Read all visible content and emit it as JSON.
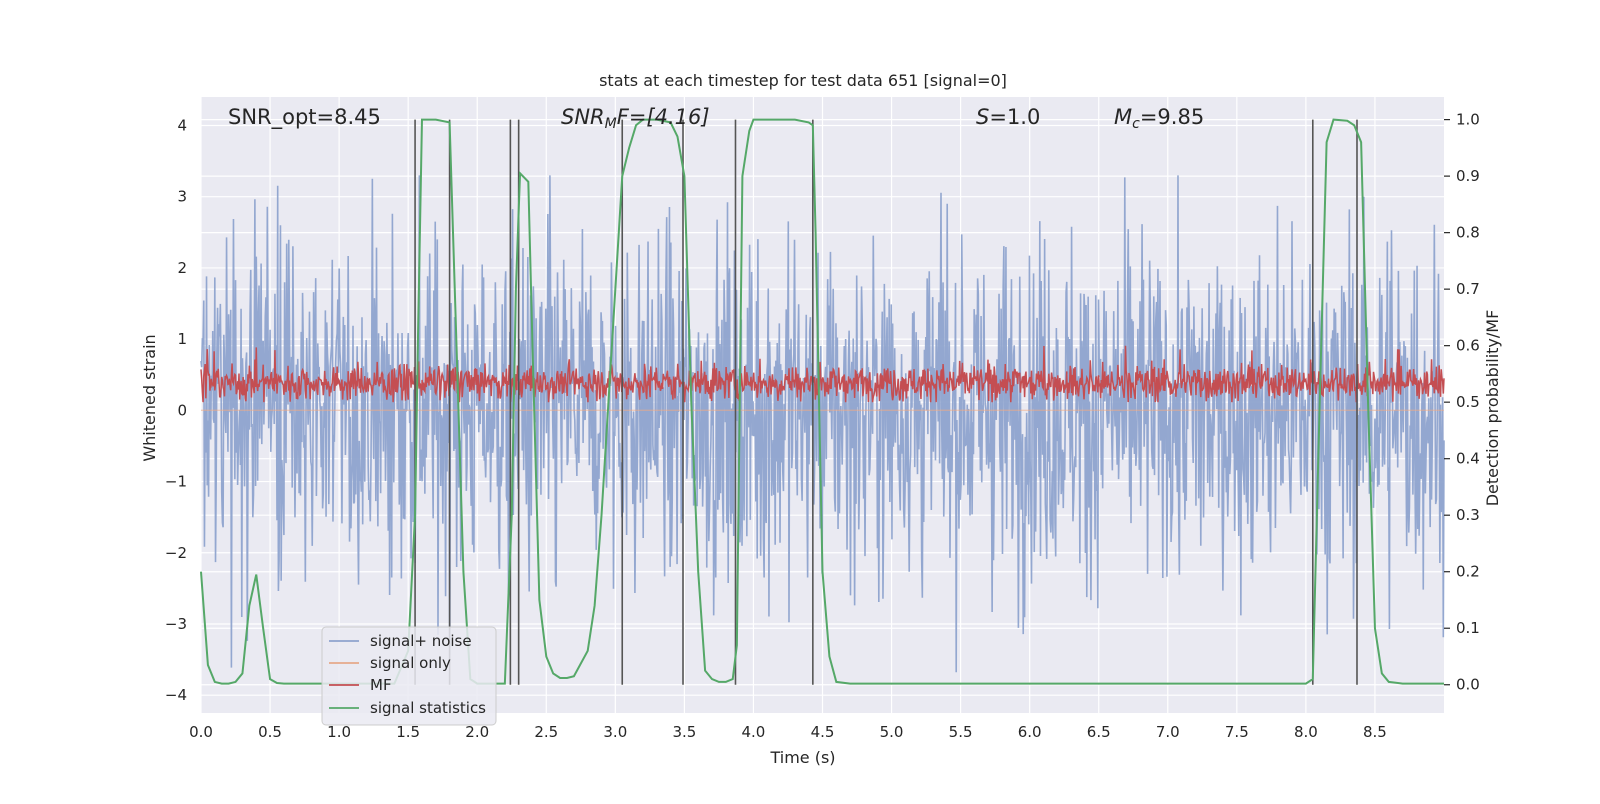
{
  "chart_data": {
    "type": "line",
    "title": "stats at each timestep for test data 651 [signal=0]",
    "xlabel": "Time (s)",
    "ylabel": "Whitened strain",
    "ylabel_right": "Detection probability/MF",
    "xlim": [
      0.0,
      9.0
    ],
    "ylim_left": [
      -4.25,
      4.4
    ],
    "ylim_right": [
      -0.05,
      1.04
    ],
    "xticks": [
      0.0,
      0.5,
      1.0,
      1.5,
      2.0,
      2.5,
      3.0,
      3.5,
      4.0,
      4.5,
      5.0,
      5.5,
      6.0,
      6.5,
      7.0,
      7.5,
      8.0,
      8.5
    ],
    "xtick_labels": [
      "0.0",
      "0.5",
      "1.0",
      "1.5",
      "2.0",
      "2.5",
      "3.0",
      "3.5",
      "4.0",
      "4.5",
      "5.0",
      "5.5",
      "6.0",
      "6.5",
      "7.0",
      "7.5",
      "8.0",
      "8.5"
    ],
    "yticks_left": [
      4,
      3,
      2,
      1,
      0,
      -1,
      -2,
      -3,
      -4
    ],
    "ytick_labels_left": [
      "4",
      "3",
      "2",
      "1",
      "0",
      "−1",
      "−2",
      "−3",
      "−4"
    ],
    "yticks_right": [
      1.0,
      0.9,
      0.8,
      0.7,
      0.6,
      0.5,
      0.4,
      0.3,
      0.2,
      0.1,
      0.0
    ],
    "ytick_labels_right": [
      "1.0",
      "0.9",
      "0.8",
      "0.7",
      "0.6",
      "0.5",
      "0.4",
      "0.3",
      "0.2",
      "0.1",
      "0.0"
    ],
    "annotations": {
      "snr_opt": "SNR_opt=8.45",
      "snr_mf_sym": "SNR",
      "snr_mf_sub": "M",
      "snr_mf_rest": "F=[4.16]",
      "s_sym": "S",
      "s_rest": "=1.0",
      "mc_sym": "M",
      "mc_sub": "c",
      "mc_rest": "=9.85"
    },
    "legend": {
      "position": "lower-left",
      "entries": [
        "signal+ noise",
        "signal only",
        "MF",
        "signal statistics"
      ]
    },
    "colors": {
      "noise": "#8ea3cd",
      "signal_only": "#e6a98a",
      "mf": "#c44e52",
      "statistics": "#55a868",
      "vlines": "#555555",
      "background": "#eaeaf2",
      "grid": "#ffffff"
    },
    "series": [
      {
        "name": "signal+ noise",
        "kind": "noise",
        "axis": "left",
        "t_range": [
          0.0,
          9.0
        ],
        "samples": 1800,
        "envelope": [
          -3.7,
          3.3
        ],
        "typical_range": [
          -2.0,
          2.0
        ]
      },
      {
        "name": "signal only",
        "kind": "line",
        "axis": "left",
        "x": [
          0.0,
          9.0
        ],
        "y": [
          0.0,
          0.0
        ]
      },
      {
        "name": "MF",
        "kind": "noise",
        "axis": "right",
        "t_range": [
          0.0,
          9.0
        ],
        "samples": 1800,
        "envelope": [
          0.5,
          0.6
        ],
        "typical_range": [
          0.51,
          0.56
        ]
      },
      {
        "name": "signal statistics",
        "kind": "line",
        "axis": "right",
        "x": [
          0.0,
          0.05,
          0.1,
          0.15,
          0.2,
          0.25,
          0.3,
          0.35,
          0.4,
          0.45,
          0.5,
          0.55,
          0.6,
          0.7,
          0.8,
          1.0,
          1.2,
          1.4,
          1.5,
          1.55,
          1.57,
          1.6,
          1.65,
          1.7,
          1.8,
          1.85,
          1.9,
          1.95,
          2.0,
          2.1,
          2.2,
          2.25,
          2.28,
          2.31,
          2.37,
          2.4,
          2.45,
          2.5,
          2.55,
          2.6,
          2.65,
          2.7,
          2.8,
          2.85,
          2.9,
          2.95,
          3.0,
          3.05,
          3.1,
          3.15,
          3.2,
          3.3,
          3.4,
          3.45,
          3.5,
          3.55,
          3.6,
          3.65,
          3.7,
          3.75,
          3.8,
          3.85,
          3.88,
          3.92,
          3.97,
          4.0,
          4.1,
          4.2,
          4.3,
          4.4,
          4.43,
          4.45,
          4.5,
          4.55,
          4.6,
          4.7,
          5.0,
          6.0,
          7.0,
          7.5,
          8.0,
          8.05,
          8.1,
          8.15,
          8.2,
          8.3,
          8.35,
          8.4,
          8.45,
          8.5,
          8.55,
          8.6,
          8.7,
          8.8,
          9.0
        ],
        "y": [
          0.2,
          0.035,
          0.005,
          0.002,
          0.002,
          0.005,
          0.02,
          0.14,
          0.195,
          0.1,
          0.01,
          0.003,
          0.002,
          0.002,
          0.002,
          0.002,
          0.002,
          0.002,
          0.06,
          0.3,
          0.6,
          1.0,
          1.0,
          1.0,
          0.995,
          0.6,
          0.2,
          0.01,
          0.002,
          0.002,
          0.002,
          0.3,
          0.7,
          0.905,
          0.89,
          0.6,
          0.15,
          0.05,
          0.02,
          0.012,
          0.012,
          0.015,
          0.06,
          0.14,
          0.3,
          0.5,
          0.7,
          0.9,
          0.95,
          0.99,
          1.0,
          1.0,
          0.995,
          0.97,
          0.9,
          0.5,
          0.2,
          0.025,
          0.01,
          0.005,
          0.005,
          0.01,
          0.07,
          0.9,
          0.98,
          1.0,
          1.0,
          1.0,
          1.0,
          0.995,
          0.99,
          0.8,
          0.2,
          0.05,
          0.005,
          0.002,
          0.002,
          0.002,
          0.002,
          0.002,
          0.002,
          0.01,
          0.5,
          0.96,
          1.0,
          0.998,
          0.99,
          0.96,
          0.5,
          0.1,
          0.02,
          0.005,
          0.002,
          0.002,
          0.002
        ]
      }
    ],
    "vlines_x": [
      1.55,
      1.8,
      2.24,
      2.3,
      3.05,
      3.49,
      3.87,
      4.43,
      8.05,
      8.37
    ],
    "vlines_yrange_right": [
      0.0,
      1.0
    ]
  }
}
